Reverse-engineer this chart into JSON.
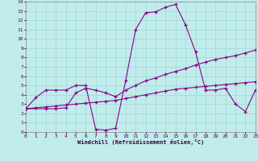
{
  "xlabel": "Windchill (Refroidissement éolien,°C)",
  "bg_color": "#c0ecec",
  "grid_color": "#a8d8d8",
  "line_color": "#880088",
  "xlim": [
    0,
    23
  ],
  "ylim": [
    0,
    14
  ],
  "xticks": [
    0,
    1,
    2,
    3,
    4,
    5,
    6,
    7,
    8,
    9,
    10,
    11,
    12,
    13,
    14,
    15,
    16,
    17,
    18,
    19,
    20,
    21,
    22,
    23
  ],
  "yticks": [
    0,
    1,
    2,
    3,
    4,
    5,
    6,
    7,
    8,
    9,
    10,
    11,
    12,
    13,
    14
  ],
  "line1_x": [
    0,
    1,
    2,
    3,
    4,
    5,
    6,
    7,
    8,
    9,
    10,
    11,
    12,
    13,
    14,
    15,
    16,
    17,
    18,
    19,
    20,
    21,
    22,
    23
  ],
  "line1_y": [
    2.5,
    3.7,
    4.5,
    4.5,
    4.5,
    5.0,
    5.0,
    0.3,
    0.2,
    0.4,
    5.5,
    11.0,
    12.8,
    12.9,
    13.4,
    13.7,
    11.5,
    8.6,
    4.5,
    4.5,
    4.7,
    3.0,
    2.2,
    4.5
  ],
  "line2_x": [
    0,
    1,
    2,
    3,
    4,
    5,
    6,
    7,
    8,
    9,
    10,
    11,
    12,
    13,
    14,
    15,
    16,
    17,
    18,
    19,
    20,
    21,
    22,
    23
  ],
  "line2_y": [
    2.5,
    2.6,
    2.7,
    2.8,
    2.9,
    3.0,
    3.1,
    3.2,
    3.3,
    3.4,
    3.6,
    3.8,
    4.0,
    4.2,
    4.4,
    4.6,
    4.7,
    4.8,
    4.9,
    5.0,
    5.1,
    5.2,
    5.3,
    5.4
  ],
  "line3_x": [
    0,
    2,
    3,
    4,
    5,
    6,
    7,
    8,
    9,
    10,
    11,
    12,
    13,
    14,
    15,
    16,
    17,
    18,
    19,
    20,
    21,
    22,
    23
  ],
  "line3_y": [
    2.5,
    2.5,
    2.5,
    2.6,
    4.2,
    4.7,
    4.5,
    4.2,
    3.8,
    4.5,
    5.0,
    5.5,
    5.8,
    6.2,
    6.5,
    6.8,
    7.2,
    7.5,
    7.8,
    8.0,
    8.2,
    8.5,
    8.8
  ]
}
